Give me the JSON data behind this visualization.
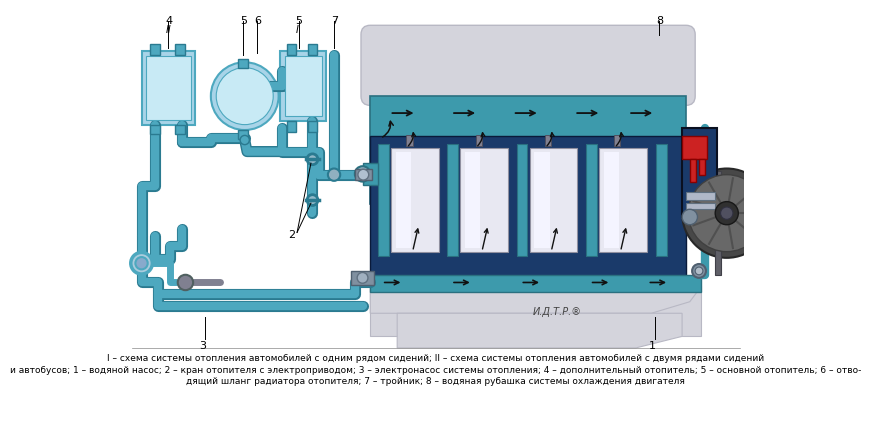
{
  "bg": "#ffffff",
  "pipe_color": "#4da8bf",
  "pipe_dark": "#2a7a90",
  "pipe_light": "#80c8d8",
  "engine_teal": "#3d9aac",
  "engine_teal_dark": "#2a7080",
  "engine_blue_dark": "#1a3a6a",
  "engine_silver_light": "#d4d4dc",
  "engine_silver_mid": "#b8b8c4",
  "engine_silver_dark": "#909098",
  "cylinder_white": "#e8e8f2",
  "cylinder_inner": "#f4f4ff",
  "heater_fill": "#a8d4e8",
  "heater_inner": "#c8eaf5",
  "red_part": "#cc2222",
  "dark_metal": "#303848",
  "label_color": "#000000",
  "watermark": "И.Д.Т.Р.®",
  "cap1": "I – схема системы отопления автомобилей с одним рядом сидений; II – схема системы отопления автомобилей с двумя рядами сидений",
  "cap2": "и автобусов; 1 – водяной насос; 2 – кран отопителя с электроприводом; 3 – электронасос системы отопления; 4 – дополнительный отопитель; 5 – основной отопитель; 6 – отво-",
  "cap3": "дящий шланг радиатора отопителя; 7 – тройник; 8 – водяная рубашка системы охлаждения двигателя"
}
